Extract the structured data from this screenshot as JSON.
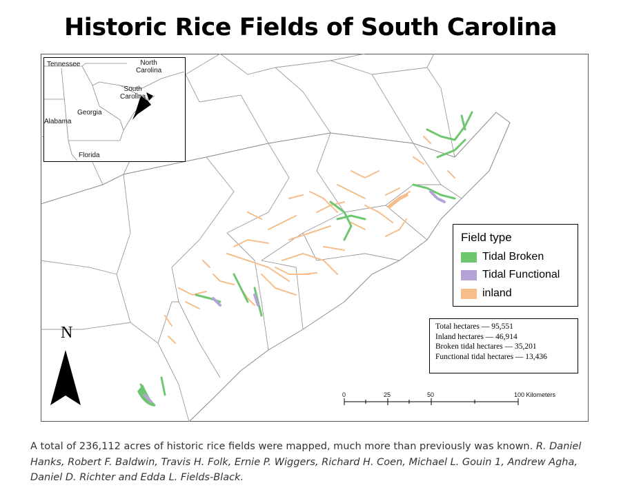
{
  "title": "Historic Rice Fields of South Carolina",
  "inset": {
    "labels": {
      "tennessee": "Tennessee",
      "north_carolina": "North\nCarolina",
      "south_carolina": "South\nCarolina",
      "georgia": "Georgia",
      "alabama": "Alabama",
      "florida": "Florida"
    }
  },
  "legend": {
    "title": "Field type",
    "items": [
      {
        "label": "Tidal Broken",
        "color": "#6ec66e"
      },
      {
        "label": "Tidal Functional",
        "color": "#b5a3d8"
      },
      {
        "label": "inland",
        "color": "#f7bd8a"
      }
    ]
  },
  "stats": [
    "Total hectares — 95,551",
    "Inland hectares — 46,914",
    "Broken tidal hectares — 35,201",
    "Functional tidal hectares — 13,436"
  ],
  "north_label": "N",
  "scale_bar": {
    "ticks": [
      "0",
      "25",
      "50",
      "100 Kilometers"
    ]
  },
  "caption": {
    "text": "A total of 236,112 acres of historic rice fields were mapped, much more than previously was known. ",
    "credits": "R. Daniel Hanks, Robert F. Baldwin, Travis H. Folk, Ernie P. Wiggers, Richard H. Coen, Michael L. Gouin 1, Andrew Agha, Daniel D. Richter and Edda L. Fields-Black."
  }
}
